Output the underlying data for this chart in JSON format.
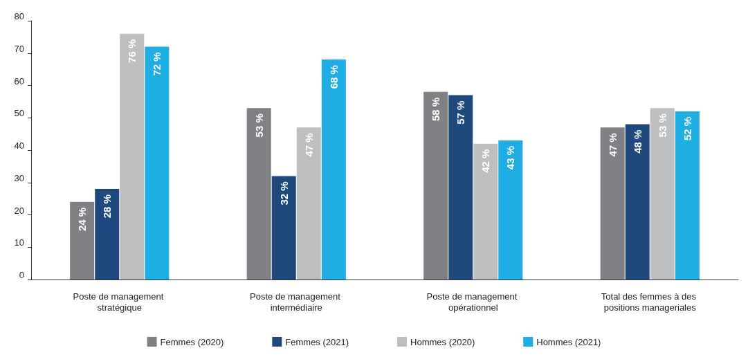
{
  "chart_data": {
    "type": "bar",
    "categories": [
      "Poste de management stratégique",
      "Poste de management intermédiaire",
      "Poste de management opérationnel",
      "Total des femmes à des positions manageriales"
    ],
    "series": [
      {
        "name": "Femmes (2020)",
        "color": "#808184",
        "values": [
          24,
          53,
          58,
          47
        ],
        "value_labels": [
          "24 %",
          "53 %",
          "58 %",
          "47 %"
        ]
      },
      {
        "name": "Femmes (2021)",
        "color": "#1f497d",
        "values": [
          28,
          32,
          57,
          48
        ],
        "value_labels": [
          "28 %",
          "32 %",
          "57 %",
          "48 %"
        ]
      },
      {
        "name": "Hommes (2020)",
        "color": "#bcbec0",
        "values": [
          76,
          47,
          42,
          53
        ],
        "value_labels": [
          "76 %",
          "47 %",
          "42 %",
          "53 %"
        ]
      },
      {
        "name": "Hommes (2021)",
        "color": "#1eaee3",
        "values": [
          72,
          68,
          43,
          52
        ],
        "value_labels": [
          "72 %",
          "68 %",
          "43 %",
          "52 %"
        ]
      }
    ],
    "ylim": [
      0,
      80
    ],
    "yticks": [
      0,
      10,
      20,
      30,
      40,
      50,
      60,
      70,
      80
    ],
    "grid": false,
    "legend": "bottom"
  }
}
